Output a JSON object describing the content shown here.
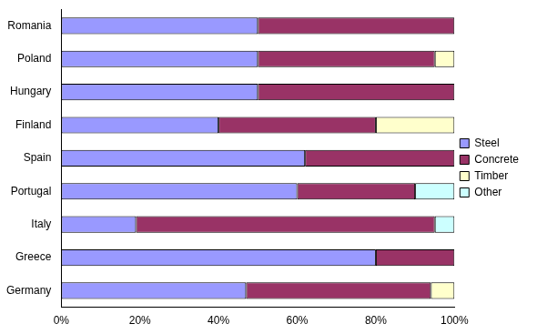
{
  "chart_data": {
    "type": "bar",
    "orientation": "horizontal",
    "stacked": true,
    "categories": [
      "Romania",
      "Poland",
      "Hungary",
      "Finland",
      "Spain",
      "Portugal",
      "Italy",
      "Greece",
      "Germany"
    ],
    "series": [
      {
        "name": "Steel",
        "color": "#9999ff",
        "values": [
          50,
          50,
          50,
          40,
          62,
          60,
          19,
          80,
          47
        ]
      },
      {
        "name": "Concrete",
        "color": "#993366",
        "values": [
          50,
          45,
          50,
          40,
          38,
          30,
          76,
          20,
          47
        ]
      },
      {
        "name": "Timber",
        "color": "#ffffcc",
        "values": [
          0,
          5,
          0,
          20,
          0,
          0,
          0,
          0,
          6
        ]
      },
      {
        "name": "Other",
        "color": "#ccffff",
        "values": [
          0,
          0,
          0,
          0,
          0,
          10,
          5,
          0,
          0
        ]
      }
    ],
    "xlim": [
      0,
      100
    ],
    "xticks": [
      {
        "value": 0,
        "label": "0%"
      },
      {
        "value": 20,
        "label": "20%"
      },
      {
        "value": 40,
        "label": "40%"
      },
      {
        "value": 60,
        "label": "60%"
      },
      {
        "value": 80,
        "label": "80%"
      },
      {
        "value": 100,
        "label": "100%"
      }
    ],
    "grid": false,
    "legend": "right"
  }
}
